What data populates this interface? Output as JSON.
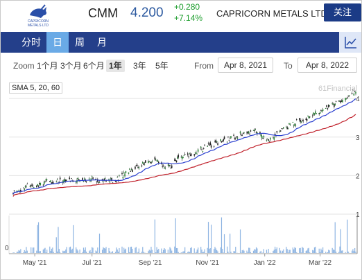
{
  "header": {
    "ticker": "CMM",
    "price": "4.200",
    "change_abs": "+0.280",
    "change_pct": "+7.14%",
    "company": "CAPRICORN METALS LTD",
    "follow_label": "关注",
    "logo_icon": "capricorn-logo-icon",
    "logo_text_1": "CAPRICORN",
    "logo_text_2": "METALS LTD"
  },
  "period_tabs": [
    {
      "label": "分时",
      "active": false
    },
    {
      "label": "日",
      "active": true
    },
    {
      "label": "周",
      "active": false
    },
    {
      "label": "月",
      "active": false
    }
  ],
  "chart_toggle_icon": "line-chart-icon",
  "zoom": {
    "label": "Zoom",
    "options": [
      "1个月",
      "3个月",
      "6个月",
      "1年",
      "3年",
      "5年"
    ],
    "selected": "1年"
  },
  "range": {
    "from_label": "From",
    "from_value": "Apr 8, 2021",
    "to_label": "To",
    "to_value": "Apr 8, 2022"
  },
  "sma_badge": "SMA 5, 20, 60",
  "watermark": "61Financial",
  "colors": {
    "accent": "#243f8a",
    "active_tab": "#6aaae6",
    "up": "#1c9d2c",
    "sma_short": "#2a3fcf",
    "sma_long": "#c0202a",
    "volume": "#8db4e2"
  },
  "chart_data": {
    "type": "candlestick",
    "x_tick_labels": [
      "May '21",
      "Jul '21",
      "Sep '21",
      "Nov '21",
      "Jan '22",
      "Mar '22"
    ],
    "y_tick_labels": [
      "1",
      "2",
      "3",
      "4"
    ],
    "y_range": [
      1,
      4.2
    ],
    "volume_tick_label": "0",
    "close_path": [
      {
        "date": "2021-04-08",
        "close": 1.55
      },
      {
        "date": "2021-04-25",
        "close": 1.75
      },
      {
        "date": "2021-05-20",
        "close": 1.85
      },
      {
        "date": "2021-06-15",
        "close": 1.9
      },
      {
        "date": "2021-07-10",
        "close": 1.9
      },
      {
        "date": "2021-07-25",
        "close": 1.85
      },
      {
        "date": "2021-08-10",
        "close": 2.15
      },
      {
        "date": "2021-08-25",
        "close": 2.3
      },
      {
        "date": "2021-09-05",
        "close": 2.4
      },
      {
        "date": "2021-09-20",
        "close": 2.2
      },
      {
        "date": "2021-10-01",
        "close": 2.45
      },
      {
        "date": "2021-10-15",
        "close": 2.55
      },
      {
        "date": "2021-10-30",
        "close": 2.75
      },
      {
        "date": "2021-11-15",
        "close": 2.9
      },
      {
        "date": "2021-12-01",
        "close": 3.0
      },
      {
        "date": "2021-12-20",
        "close": 3.2
      },
      {
        "date": "2022-01-05",
        "close": 2.9
      },
      {
        "date": "2022-01-20",
        "close": 3.2
      },
      {
        "date": "2022-02-05",
        "close": 3.4
      },
      {
        "date": "2022-02-25",
        "close": 3.6
      },
      {
        "date": "2022-03-10",
        "close": 3.8
      },
      {
        "date": "2022-03-25",
        "close": 3.95
      },
      {
        "date": "2022-04-08",
        "close": 4.2
      }
    ]
  }
}
